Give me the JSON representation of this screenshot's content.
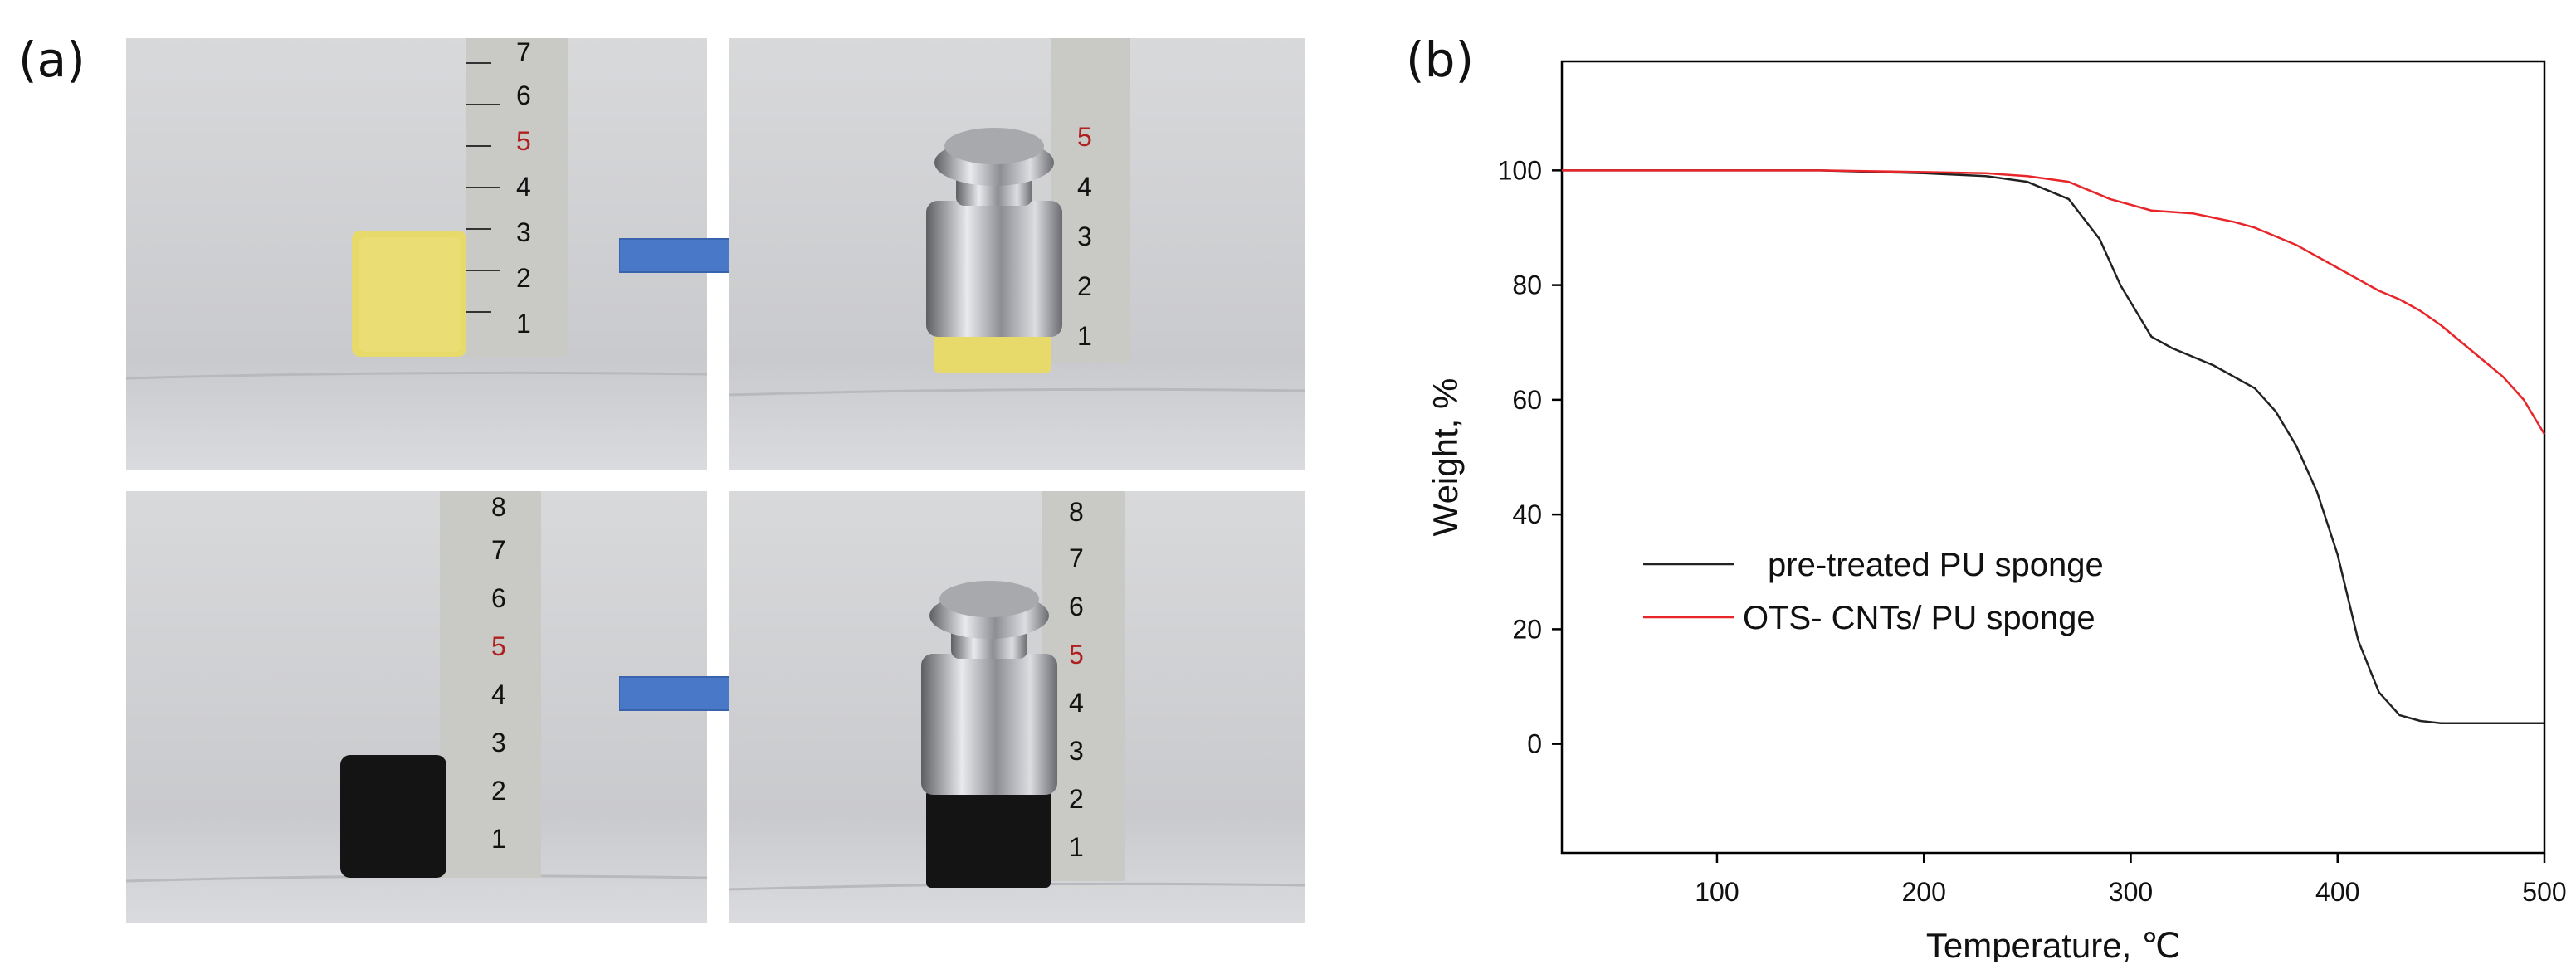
{
  "panels": {
    "a_label": "(a)",
    "b_label": "(b)"
  },
  "photos": {
    "ruler_numbers_top_left": [
      "1",
      "2",
      "3",
      "4",
      "5",
      "6",
      "7"
    ],
    "ruler_numbers_top_right": [
      "1",
      "2",
      "3",
      "4",
      "5"
    ],
    "ruler_numbers_bottom_left": [
      "1",
      "2",
      "3",
      "4",
      "5",
      "6",
      "7",
      "8"
    ],
    "ruler_numbers_bottom_right": [
      "1",
      "2",
      "3",
      "4",
      "5",
      "6",
      "7",
      "8"
    ],
    "colors": {
      "yellow_sponge": "#e7d96a",
      "black_sponge": "#141414",
      "arrow": "#4a78c9",
      "background": "#d5d6d8"
    }
  },
  "chart_data": {
    "type": "line",
    "xlabel": "Temperature, ℃",
    "ylabel": "Weight, %",
    "xlim": [
      25,
      500
    ],
    "ylim": [
      -19,
      119
    ],
    "xticks": [
      100,
      200,
      300,
      400,
      500
    ],
    "yticks": [
      0,
      20,
      40,
      60,
      80,
      100
    ],
    "legend_position": "lower-left",
    "series": [
      {
        "name": "pre-treated PU sponge",
        "color": "#222222",
        "x": [
          25,
          100,
          150,
          200,
          230,
          250,
          270,
          285,
          295,
          305,
          310,
          320,
          340,
          360,
          370,
          380,
          390,
          400,
          410,
          420,
          430,
          440,
          450,
          460,
          500
        ],
        "y": [
          100,
          100,
          100,
          99.5,
          99,
          98,
          95,
          88,
          80,
          74,
          71,
          69,
          66,
          62,
          58,
          52,
          44,
          33,
          18,
          9,
          5,
          4,
          3.6,
          3.6,
          3.6
        ]
      },
      {
        "name": "OTS- CNTs/ PU sponge",
        "color": "#e8262a",
        "x": [
          25,
          100,
          150,
          200,
          230,
          250,
          270,
          290,
          310,
          330,
          350,
          360,
          370,
          380,
          390,
          400,
          410,
          420,
          430,
          440,
          450,
          460,
          470,
          480,
          490,
          500
        ],
        "y": [
          100,
          100,
          100,
          99.7,
          99.5,
          99,
          98,
          95,
          93,
          92.5,
          91,
          90,
          88.5,
          87,
          85,
          83,
          81,
          79,
          77.5,
          75.5,
          73,
          70,
          67,
          64,
          60,
          54
        ]
      }
    ]
  }
}
